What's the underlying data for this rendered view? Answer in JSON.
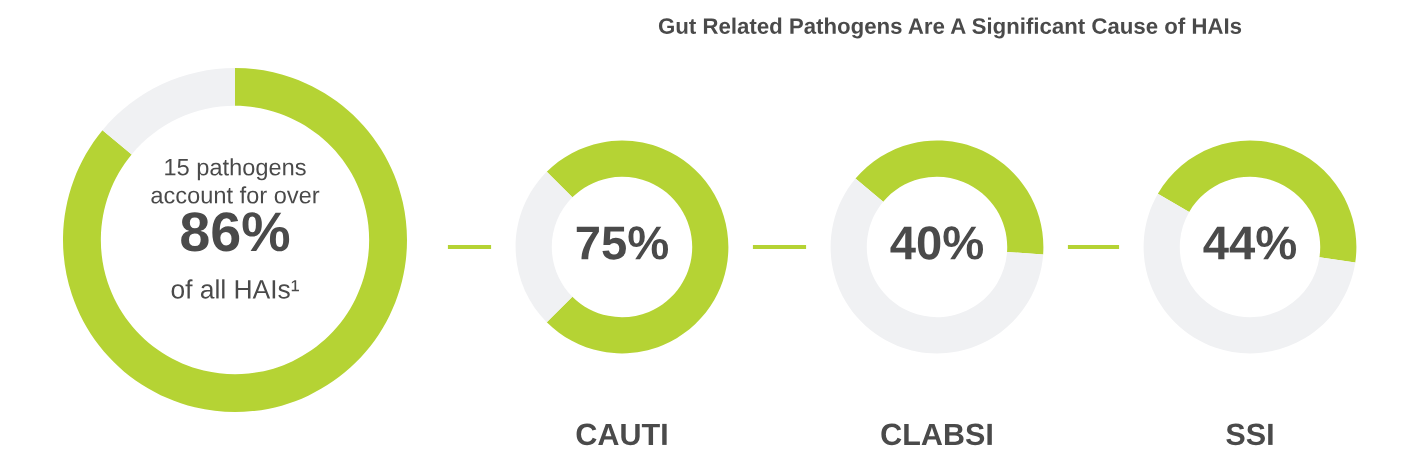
{
  "chart_data": [
    {
      "type": "donut",
      "categories": [
        null,
        null
      ],
      "values": [
        86,
        14
      ],
      "colors": [
        "#b5d334",
        "#f0f1f3"
      ],
      "value_labels": [
        "86%",
        null
      ],
      "annotations": [
        "15 pathogens\naccount for over",
        "of all HAIs¹"
      ]
    },
    {
      "type": "donut",
      "title": "Gut Related Pathogens Are A Significant Cause of HAIs",
      "categories": [
        null,
        null
      ],
      "values": [
        75,
        25
      ],
      "colors": [
        "#b5d334",
        "#f0f1f3"
      ],
      "value_labels": [
        "75%",
        null
      ],
      "xlabel": "CAUTI"
    },
    {
      "type": "donut",
      "categories": [
        null,
        null
      ],
      "values": [
        40,
        60
      ],
      "colors": [
        "#b5d334",
        "#f0f1f3"
      ],
      "value_labels": [
        "40%",
        null
      ],
      "xlabel": "CLABSI"
    },
    {
      "type": "donut",
      "categories": [
        null,
        null
      ],
      "values": [
        44,
        56
      ],
      "colors": [
        "#b5d334",
        "#f0f1f3"
      ],
      "value_labels": [
        "44%",
        null
      ],
      "xlabel": "SSI"
    }
  ]
}
